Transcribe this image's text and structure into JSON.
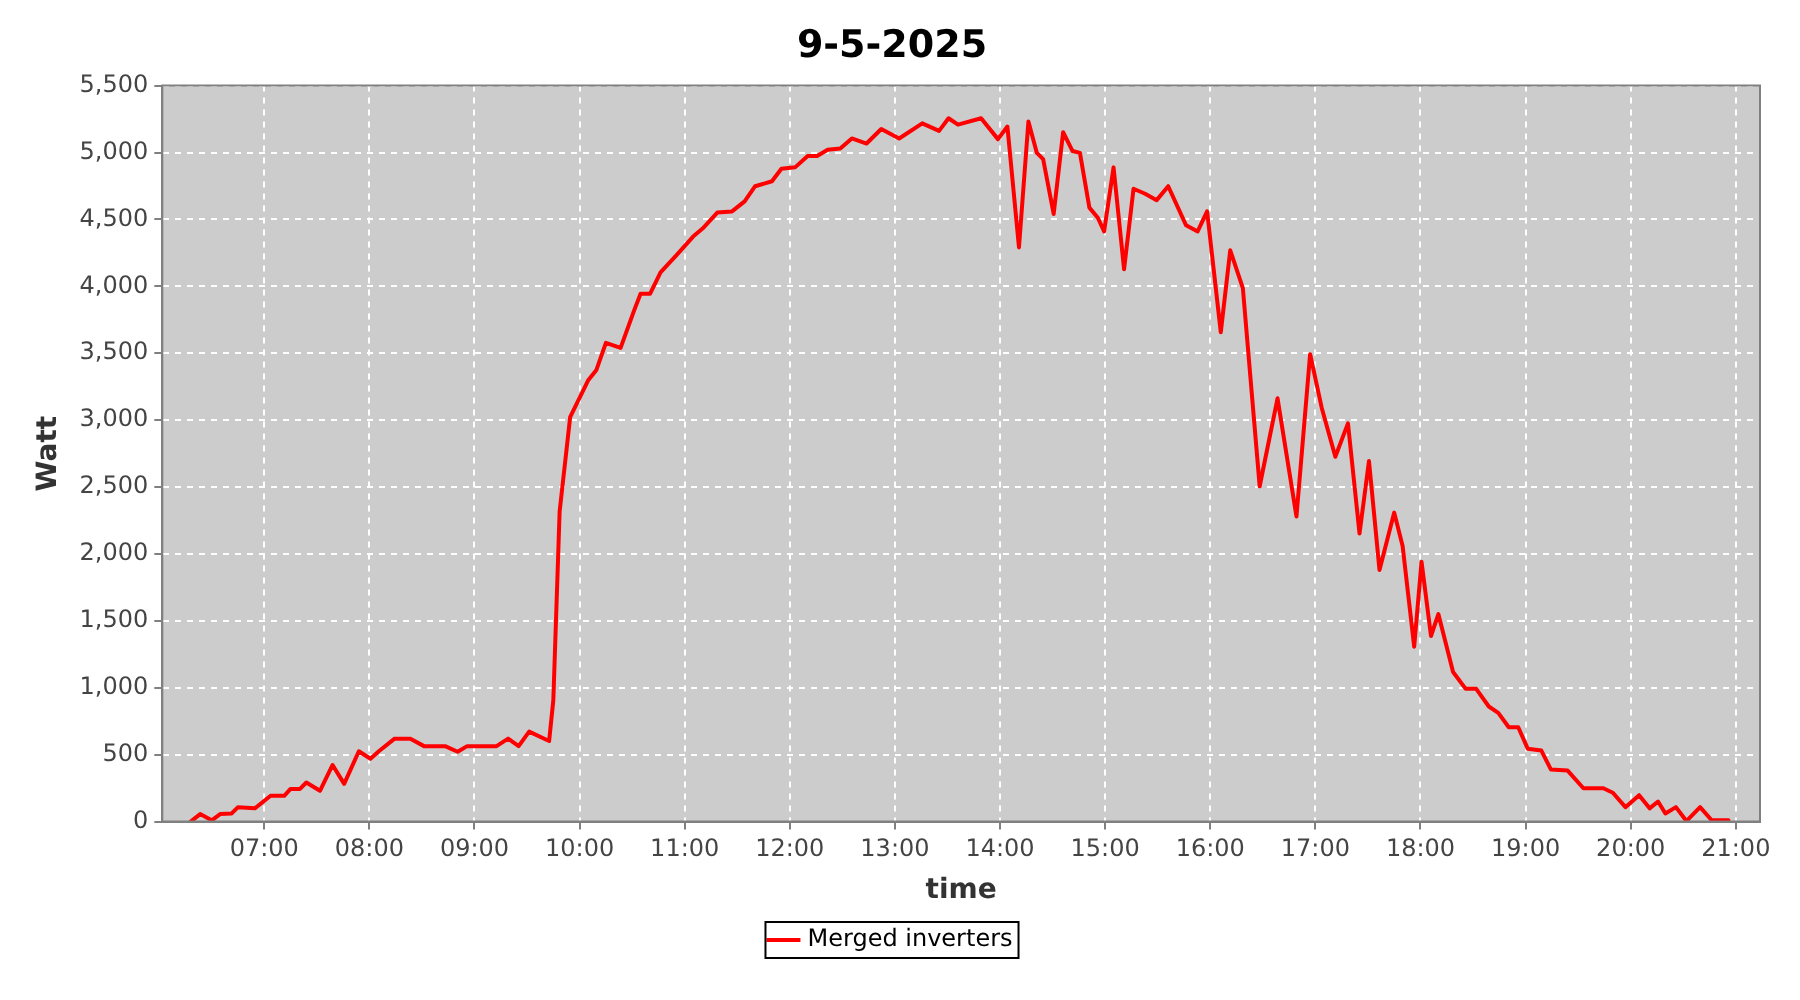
{
  "chart_data": {
    "type": "line",
    "title": "9-5-2025",
    "xlabel": "time",
    "ylabel": "Watt",
    "xlim": [
      6.03,
      21.23
    ],
    "xticks": [
      {
        "value": 7,
        "label": "07:00"
      },
      {
        "value": 8,
        "label": "08:00"
      },
      {
        "value": 9,
        "label": "09:00"
      },
      {
        "value": 10,
        "label": "10:00"
      },
      {
        "value": 11,
        "label": "11:00"
      },
      {
        "value": 12,
        "label": "12:00"
      },
      {
        "value": 13,
        "label": "13:00"
      },
      {
        "value": 14,
        "label": "14:00"
      },
      {
        "value": 15,
        "label": "15:00"
      },
      {
        "value": 16,
        "label": "16:00"
      },
      {
        "value": 17,
        "label": "17:00"
      },
      {
        "value": 18,
        "label": "18:00"
      },
      {
        "value": 19,
        "label": "19:00"
      },
      {
        "value": 20,
        "label": "20:00"
      },
      {
        "value": 21,
        "label": "21:00"
      }
    ],
    "ylim": [
      0,
      5500
    ],
    "yticks": [
      0,
      500,
      {
        "value": 1000,
        "label": "1,000"
      },
      {
        "value": 1500,
        "label": "1,500"
      },
      {
        "value": 2000,
        "label": "2,000"
      },
      {
        "value": 2500,
        "label": "2,500"
      },
      {
        "value": 3000,
        "label": "3,000"
      },
      {
        "value": 3500,
        "label": "3,500"
      },
      {
        "value": 4000,
        "label": "4,000"
      },
      {
        "value": 4500,
        "label": "4,500"
      },
      {
        "value": 5000,
        "label": "5,000"
      },
      {
        "value": 5500,
        "label": "5,500"
      }
    ],
    "grid": true,
    "legend": "bottom",
    "marker": "none",
    "line_style": "solid",
    "x": [
      6.3,
      6.39,
      6.5,
      6.58,
      6.69,
      6.75,
      6.91,
      7.06,
      7.19,
      7.25,
      7.34,
      7.4,
      7.53,
      7.65,
      7.76,
      7.9,
      8.01,
      8.09,
      8.24,
      8.39,
      8.52,
      8.72,
      8.84,
      8.93,
      9.21,
      9.32,
      9.42,
      9.52,
      9.71,
      9.75,
      9.81,
      9.91,
      10.08,
      10.16,
      10.25,
      10.39,
      10.52,
      10.58,
      10.67,
      10.77,
      10.92,
      11.08,
      11.17,
      11.31,
      11.45,
      11.57,
      11.67,
      11.83,
      11.92,
      12.05,
      12.17,
      12.26,
      12.36,
      12.48,
      12.59,
      12.73,
      12.87,
      13.04,
      13.26,
      13.42,
      13.51,
      13.6,
      13.82,
      13.98,
      14.07,
      14.18,
      14.27,
      14.35,
      14.41,
      14.51,
      14.6,
      14.69,
      14.76,
      14.85,
      14.93,
      14.99,
      15.08,
      15.18,
      15.27,
      15.38,
      15.49,
      15.6,
      15.77,
      15.88,
      15.97,
      16.1,
      16.19,
      16.31,
      16.47,
      16.64,
      16.82,
      16.95,
      17.06,
      17.19,
      17.31,
      17.42,
      17.51,
      17.61,
      17.75,
      17.83,
      17.94,
      18.01,
      18.1,
      18.17,
      18.31,
      18.43,
      18.53,
      18.65,
      18.74,
      18.84,
      18.93,
      19.02,
      19.15,
      19.24,
      19.4,
      19.55,
      19.74,
      19.83,
      19.95,
      20.08,
      20.18,
      20.26,
      20.33,
      20.43,
      20.53,
      20.66,
      20.77,
      20.93
    ],
    "series": [
      {
        "name": "Merged inverters",
        "color": "#ff0000",
        "values": [
          0,
          56,
          10,
          56,
          61,
          108,
          99,
          193,
          193,
          244,
          244,
          292,
          230,
          423,
          282,
          526,
          470,
          526,
          620,
          620,
          564,
          564,
          522,
          564,
          564,
          620,
          564,
          672,
          602,
          907,
          2317,
          3022,
          3296,
          3375,
          3578,
          3540,
          3822,
          3944,
          3944,
          4104,
          4231,
          4372,
          4432,
          4551,
          4560,
          4635,
          4748,
          4785,
          4879,
          4889,
          4974,
          4974,
          5020,
          5030,
          5105,
          5067,
          5176,
          5105,
          5218,
          5162,
          5256,
          5208,
          5256,
          5100,
          5194,
          4291,
          5232,
          4997,
          4950,
          4541,
          5152,
          5011,
          4997,
          4588,
          4513,
          4410,
          4889,
          4128,
          4729,
          4692,
          4644,
          4748,
          4456,
          4410,
          4560,
          3657,
          4269,
          3987,
          2506,
          3163,
          2280,
          3493,
          3093,
          2726,
          2976,
          2153,
          2694,
          1880,
          2309,
          2059,
          1307,
          1942,
          1387,
          1551,
          1118,
          992,
          992,
          860,
          813,
          705,
          705,
          545,
          531,
          390,
          381,
          249,
          249,
          216,
          108,
          197,
          99,
          150,
          61,
          108,
          4,
          108,
          10,
          10
        ]
      }
    ]
  }
}
